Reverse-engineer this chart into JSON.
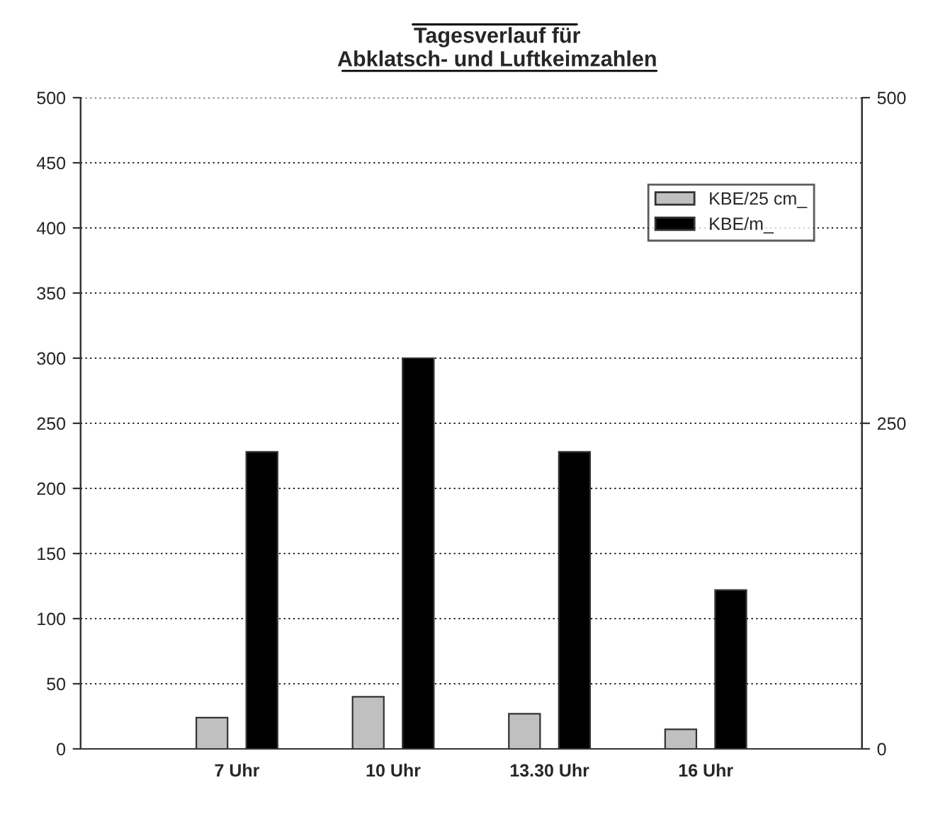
{
  "chart_data": {
    "type": "bar",
    "title": "Tagesverlauf für\nAbklatsch- und Luftkeimzahlen",
    "categories": [
      "7 Uhr",
      "10 Uhr",
      "13.30 Uhr",
      "16 Uhr"
    ],
    "series": [
      {
        "name": "KBE/25 cm_",
        "color": "#c0c0c0",
        "values": [
          24,
          40,
          27,
          15
        ]
      },
      {
        "name": "KBE/m_",
        "color": "#000000",
        "values": [
          228,
          300,
          228,
          122
        ]
      }
    ],
    "ylim": [
      0,
      500
    ],
    "yticks": [
      0,
      50,
      100,
      150,
      200,
      250,
      300,
      350,
      400,
      450,
      500
    ],
    "y2lim": [
      0,
      500
    ],
    "y2ticks": [
      0,
      250,
      500
    ],
    "grid": "y",
    "legend": "top right"
  }
}
